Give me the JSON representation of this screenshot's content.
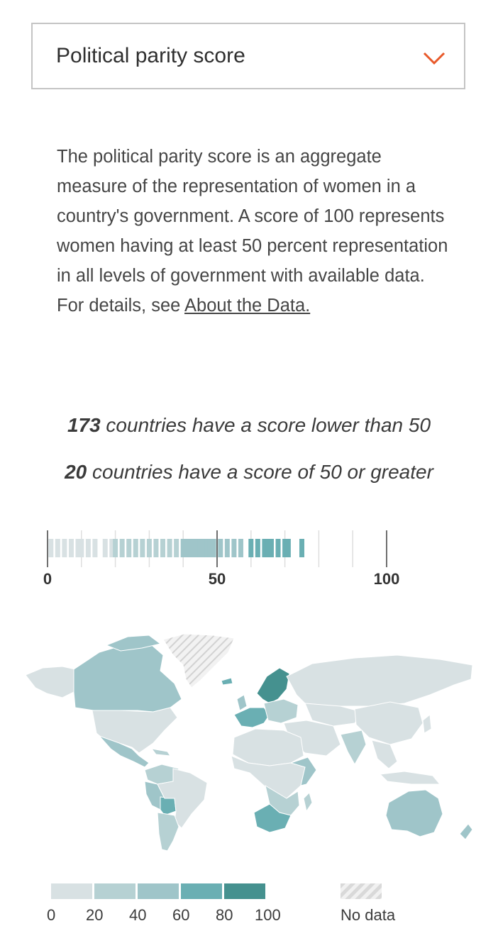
{
  "dropdown": {
    "selected": "Political parity score",
    "icon": "chevron-down-icon",
    "accent": "#e8592a"
  },
  "description": {
    "text": "The political parity score is an aggregate measure of the representation of women in a country's government. A score of 100 represents women having at least 50 percent representation in all levels of government with available data. For details, see ",
    "link": "About the Data."
  },
  "stats": [
    {
      "count": "173",
      "text": " countries have a score lower than 50"
    },
    {
      "count": "20",
      "text": " countries have a score of 50 or greater"
    }
  ],
  "chart_data": {
    "type": "strip",
    "xlim": [
      0,
      100
    ],
    "tick_labels": [
      "0",
      "50",
      "100"
    ],
    "tick_values": [
      0,
      50,
      100
    ],
    "values": [
      1,
      3,
      5,
      7,
      9,
      10,
      12,
      14,
      17,
      19,
      20,
      22,
      24,
      26,
      28,
      30,
      32,
      34,
      36,
      38,
      40,
      41,
      42,
      43,
      44,
      45,
      46,
      47,
      48,
      49,
      51,
      53,
      55,
      57,
      60,
      62,
      64,
      65,
      66,
      68,
      70,
      71,
      75
    ]
  },
  "legend": {
    "ticks": [
      "0",
      "20",
      "40",
      "60",
      "80",
      "100"
    ],
    "colors": [
      "#d8e1e3",
      "#b6d1d3",
      "#9fc5c9",
      "#6aafb3",
      "#45918f"
    ],
    "no_data_label": "No data"
  }
}
